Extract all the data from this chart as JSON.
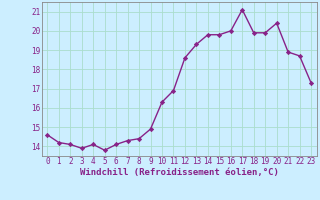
{
  "x": [
    0,
    1,
    2,
    3,
    4,
    5,
    6,
    7,
    8,
    9,
    10,
    11,
    12,
    13,
    14,
    15,
    16,
    17,
    18,
    19,
    20,
    21,
    22,
    23
  ],
  "y": [
    14.6,
    14.2,
    14.1,
    13.9,
    14.1,
    13.8,
    14.1,
    14.3,
    14.4,
    14.9,
    16.3,
    16.9,
    18.6,
    19.3,
    19.8,
    19.8,
    20.0,
    21.1,
    19.9,
    19.9,
    20.4,
    18.9,
    18.7,
    17.3
  ],
  "line_color": "#882288",
  "marker": "D",
  "marker_size": 2.2,
  "line_width": 1.0,
  "xlabel": "Windchill (Refroidissement éolien,°C)",
  "xlabel_fontsize": 6.5,
  "ylim": [
    13.5,
    21.5
  ],
  "yticks": [
    14,
    15,
    16,
    17,
    18,
    19,
    20,
    21
  ],
  "xticks": [
    0,
    1,
    2,
    3,
    4,
    5,
    6,
    7,
    8,
    9,
    10,
    11,
    12,
    13,
    14,
    15,
    16,
    17,
    18,
    19,
    20,
    21,
    22,
    23
  ],
  "tick_fontsize": 5.5,
  "background_color": "#cceeff",
  "grid_color": "#aaddcc",
  "spine_color": "#888888"
}
